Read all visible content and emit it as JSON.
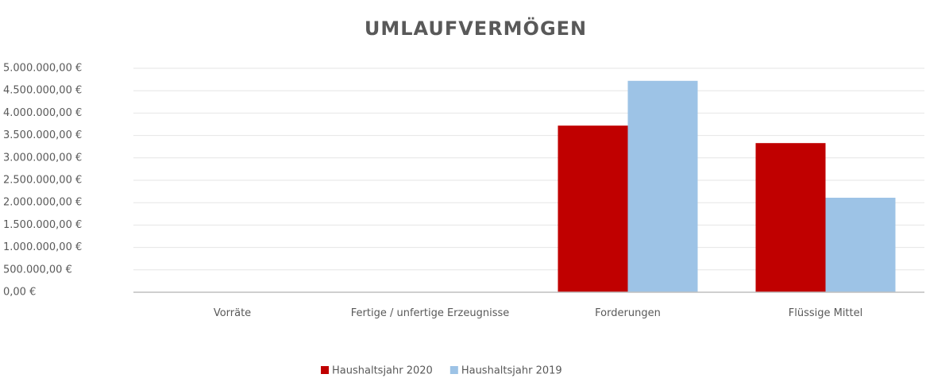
{
  "chart_data": {
    "type": "bar",
    "title": "UMLAUFVERMÖGEN",
    "categories": [
      "Vorräte",
      "Fertige / unfertige Erzeugnisse",
      "Forderungen",
      "Flüssige Mittel"
    ],
    "series": [
      {
        "name": "Haushaltsjahr 2020",
        "color": "#c00000",
        "values": [
          0,
          0,
          3720000,
          3330000
        ]
      },
      {
        "name": "Haushaltsjahr 2019",
        "color": "#9dc3e6",
        "values": [
          0,
          0,
          4720000,
          2110000
        ]
      }
    ],
    "ylim": [
      0,
      5000000
    ],
    "yticks": [
      {
        "value": 0,
        "label": "0,00 €"
      },
      {
        "value": 500000,
        "label": "500.000,00 €"
      },
      {
        "value": 1000000,
        "label": "1.000.000,00 €"
      },
      {
        "value": 1500000,
        "label": "1.500.000,00 €"
      },
      {
        "value": 2000000,
        "label": "2.000.000,00 €"
      },
      {
        "value": 2500000,
        "label": "2.500.000,00 €"
      },
      {
        "value": 3000000,
        "label": "3.000.000,00 €"
      },
      {
        "value": 3500000,
        "label": "3.500.000,00 €"
      },
      {
        "value": 4000000,
        "label": "4.000.000,00 €"
      },
      {
        "value": 4500000,
        "label": "4.500.000,00 €"
      },
      {
        "value": 5000000,
        "label": "5.000.000,00 €"
      }
    ],
    "grid": true,
    "legend": "bottom"
  }
}
